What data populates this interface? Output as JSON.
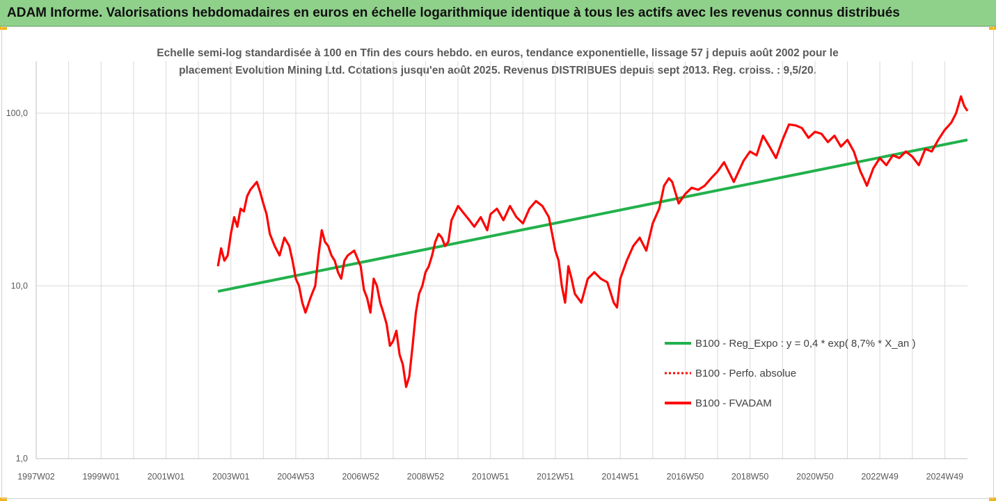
{
  "header": {
    "title": "ADAM Informe. Valorisations hebdomadaires en euros en échelle logarithmique identique à tous les actifs avec les revenus connus distribués",
    "accent_color": "#8fd18b"
  },
  "chart_data": {
    "type": "line",
    "subtitle_line1": "Echelle semi-log standardisée à 100 en Tfin des cours hebdo. en euros, tendance exponentielle, lissage 57 j depuis août 2002 pour le",
    "subtitle_line2": "placement Evolution Mining Ltd. Cotations jusqu'en août 2025. Revenus DISTRIBUES depuis sept 2013. Reg. croiss. : 9,5/20.",
    "yscale": "log",
    "ylim": [
      1,
      200
    ],
    "y_ticks": [
      {
        "value": 1,
        "label": "1,0"
      },
      {
        "value": 10,
        "label": "10,0"
      },
      {
        "value": 100,
        "label": "100,0"
      }
    ],
    "xlim": [
      1997.0,
      2025.7
    ],
    "x_ticks": [
      {
        "value": 1997.0,
        "label": "1997W02"
      },
      {
        "value": 1999.0,
        "label": "1999W01"
      },
      {
        "value": 2001.0,
        "label": "2001W01"
      },
      {
        "value": 2003.0,
        "label": "2003W01"
      },
      {
        "value": 2005.0,
        "label": "2004W53"
      },
      {
        "value": 2007.0,
        "label": "2006W52"
      },
      {
        "value": 2009.0,
        "label": "2008W52"
      },
      {
        "value": 2011.0,
        "label": "2010W51"
      },
      {
        "value": 2013.0,
        "label": "2012W51"
      },
      {
        "value": 2015.0,
        "label": "2014W51"
      },
      {
        "value": 2017.0,
        "label": "2016W50"
      },
      {
        "value": 2019.0,
        "label": "2018W50"
      },
      {
        "value": 2021.0,
        "label": "2020W50"
      },
      {
        "value": 2023.0,
        "label": "2022W49"
      },
      {
        "value": 2025.0,
        "label": "2024W49"
      }
    ],
    "grid": "vertical",
    "legend_position": "bottom-right",
    "series": [
      {
        "name": "B100 - Reg_Expo : y = 0,4 * exp( 8,7% *  X_an )",
        "color": "#22b14c",
        "style": "solid",
        "x": [
          2002.6,
          2025.7
        ],
        "y": [
          9.3,
          70
        ]
      },
      {
        "name": "B100 - Perfo. absolue",
        "color": "#ff0000",
        "style": "dotted",
        "x": [],
        "y": []
      },
      {
        "name": "B100 - FVADAM",
        "color": "#ff0000",
        "style": "solid",
        "x": [
          2002.6,
          2002.7,
          2002.8,
          2002.9,
          2003.0,
          2003.1,
          2003.2,
          2003.3,
          2003.4,
          2003.5,
          2003.6,
          2003.8,
          2003.9,
          2004.0,
          2004.1,
          2004.2,
          2004.35,
          2004.5,
          2004.65,
          2004.8,
          2004.9,
          2005.0,
          2005.1,
          2005.2,
          2005.3,
          2005.45,
          2005.6,
          2005.7,
          2005.8,
          2005.9,
          2006.0,
          2006.1,
          2006.2,
          2006.3,
          2006.4,
          2006.5,
          2006.6,
          2006.8,
          2007.0,
          2007.1,
          2007.2,
          2007.3,
          2007.4,
          2007.5,
          2007.6,
          2007.7,
          2007.8,
          2007.9,
          2008.0,
          2008.1,
          2008.2,
          2008.3,
          2008.4,
          2008.5,
          2008.6,
          2008.7,
          2008.8,
          2008.9,
          2009.0,
          2009.1,
          2009.2,
          2009.3,
          2009.4,
          2009.5,
          2009.6,
          2009.7,
          2009.8,
          2010.0,
          2010.2,
          2010.35,
          2010.5,
          2010.7,
          2010.9,
          2011.0,
          2011.2,
          2011.4,
          2011.6,
          2011.8,
          2012.0,
          2012.2,
          2012.4,
          2012.6,
          2012.8,
          2012.9,
          2013.0,
          2013.1,
          2013.2,
          2013.3,
          2013.4,
          2013.5,
          2013.6,
          2013.8,
          2014.0,
          2014.2,
          2014.4,
          2014.6,
          2014.8,
          2014.9,
          2015.0,
          2015.2,
          2015.4,
          2015.6,
          2015.8,
          2016.0,
          2016.2,
          2016.35,
          2016.5,
          2016.6,
          2016.8,
          2017.0,
          2017.2,
          2017.4,
          2017.6,
          2017.8,
          2018.0,
          2018.2,
          2018.5,
          2018.8,
          2019.0,
          2019.2,
          2019.4,
          2019.6,
          2019.8,
          2020.0,
          2020.2,
          2020.4,
          2020.6,
          2020.8,
          2021.0,
          2021.2,
          2021.4,
          2021.6,
          2021.8,
          2022.0,
          2022.2,
          2022.4,
          2022.5,
          2022.6,
          2022.8,
          2023.0,
          2023.2,
          2023.4,
          2023.6,
          2023.8,
          2024.0,
          2024.2,
          2024.4,
          2024.6,
          2024.8,
          2025.0,
          2025.2,
          2025.35,
          2025.5,
          2025.6,
          2025.7
        ],
        "y": [
          13,
          16.5,
          14,
          15,
          20,
          25,
          22,
          28,
          27,
          33,
          36,
          40,
          35,
          30,
          26,
          20,
          17,
          15,
          19,
          17,
          14,
          11,
          10,
          8,
          7,
          8.5,
          10,
          15,
          21,
          18,
          17,
          15,
          14,
          12,
          11,
          14,
          15,
          16,
          13,
          9.5,
          8.5,
          7,
          11,
          10,
          8,
          7,
          6,
          4.5,
          4.8,
          5.5,
          4,
          3.5,
          2.6,
          3,
          4.5,
          7,
          9,
          10,
          12,
          13,
          15,
          18,
          20,
          19,
          17,
          18,
          24,
          29,
          26,
          24,
          22,
          25,
          21,
          26,
          28,
          24,
          29,
          25,
          23,
          28,
          31,
          29,
          25,
          20,
          16,
          14,
          10,
          8,
          13,
          11,
          9,
          8,
          11,
          12,
          11,
          10.5,
          8,
          7.5,
          11,
          14,
          17,
          19,
          16,
          23,
          28,
          38,
          42,
          40,
          30,
          34,
          37,
          36,
          38,
          42,
          46,
          52,
          40,
          53,
          60,
          57,
          74,
          64,
          55,
          70,
          86,
          85,
          82,
          72,
          78,
          76,
          68,
          74,
          64,
          70,
          60,
          46,
          42,
          38,
          48,
          55,
          50,
          57,
          55,
          60,
          56,
          50,
          62,
          60,
          70,
          80,
          88,
          100,
          125,
          110,
          103
        ]
      }
    ]
  }
}
